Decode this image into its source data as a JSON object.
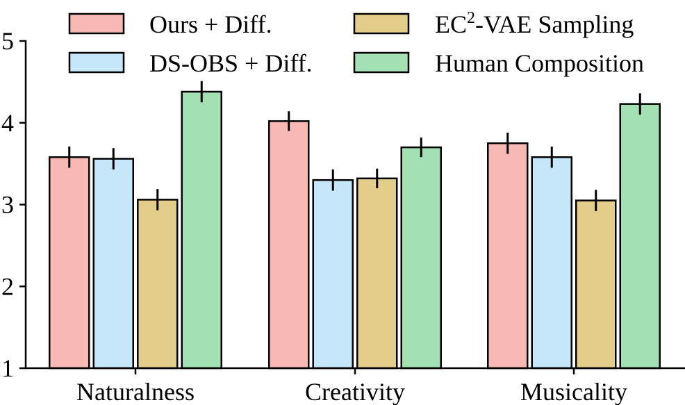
{
  "chart_data": {
    "type": "bar",
    "categories": [
      "Naturalness",
      "Creativity",
      "Musicality"
    ],
    "ylim": [
      1,
      5
    ],
    "yticks": [
      1,
      2,
      3,
      4,
      5
    ],
    "title": "",
    "xlabel": "",
    "ylabel": "",
    "legend_position": "top",
    "series": [
      {
        "name": "Ours + Diff.",
        "color": "#f8b9b5",
        "values": [
          3.58,
          4.02,
          3.75
        ],
        "errors": [
          0.13,
          0.12,
          0.13
        ]
      },
      {
        "name": "DS-OBS + Diff.",
        "color": "#c6e6fa",
        "values": [
          3.56,
          3.3,
          3.58
        ],
        "errors": [
          0.13,
          0.13,
          0.13
        ]
      },
      {
        "name": "EC²-VAE Sampling",
        "name_parts": {
          "prefix": "EC",
          "sup": "2",
          "suffix": "-VAE Sampling"
        },
        "color": "#e2cd8b",
        "values": [
          3.06,
          3.32,
          3.05
        ],
        "errors": [
          0.13,
          0.12,
          0.13
        ]
      },
      {
        "name": "Human Composition",
        "color": "#a3e1b4",
        "values": [
          4.38,
          3.7,
          4.23
        ],
        "errors": [
          0.13,
          0.12,
          0.13
        ]
      }
    ]
  }
}
